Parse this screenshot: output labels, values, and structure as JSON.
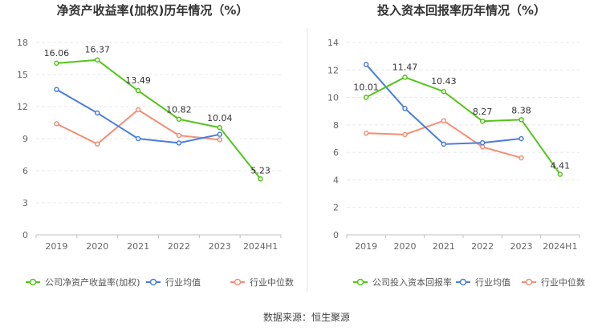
{
  "chart_data": [
    {
      "type": "line",
      "title": "净资产收益率(加权)历年情况（%）",
      "categories": [
        "2019",
        "2020",
        "2021",
        "2022",
        "2023",
        "2024H1"
      ],
      "ylim": [
        0,
        18
      ],
      "yticks": [
        0,
        3,
        6,
        9,
        12,
        15,
        18
      ],
      "grid": true,
      "legend_position": "bottom",
      "series": [
        {
          "name": "公司净资产收益率(加权)",
          "color": "#52c41a",
          "values": [
            16.06,
            16.37,
            13.49,
            10.82,
            10.04,
            5.23
          ],
          "labels": [
            "16.06",
            "16.37",
            "13.49",
            "10.82",
            "10.04",
            "5.23"
          ]
        },
        {
          "name": "行业均值",
          "color": "#4a7ddb",
          "values": [
            13.6,
            11.4,
            9.0,
            8.6,
            9.4,
            null
          ]
        },
        {
          "name": "行业中位数",
          "color": "#f28e76",
          "values": [
            10.4,
            8.5,
            11.7,
            9.3,
            8.9,
            null
          ]
        }
      ]
    },
    {
      "type": "line",
      "title": "投入资本回报率历年情况（%）",
      "categories": [
        "2019",
        "2020",
        "2021",
        "2022",
        "2023",
        "2024H1"
      ],
      "ylim": [
        0,
        14
      ],
      "yticks": [
        0,
        2,
        4,
        6,
        8,
        10,
        12,
        14
      ],
      "grid": true,
      "legend_position": "bottom",
      "series": [
        {
          "name": "公司投入资本回报率",
          "color": "#52c41a",
          "values": [
            10.01,
            11.47,
            10.43,
            8.27,
            8.38,
            4.41
          ],
          "labels": [
            "10.01",
            "11.47",
            "10.43",
            "8.27",
            "8.38",
            "4.41"
          ]
        },
        {
          "name": "行业均值",
          "color": "#4a7ddb",
          "values": [
            12.4,
            9.2,
            6.6,
            6.7,
            7.0,
            null
          ]
        },
        {
          "name": "行业中位数",
          "color": "#f28e76",
          "values": [
            7.4,
            7.3,
            8.3,
            6.4,
            5.6,
            null
          ]
        }
      ]
    }
  ],
  "footer": {
    "source": "数据来源：恒生聚源"
  }
}
